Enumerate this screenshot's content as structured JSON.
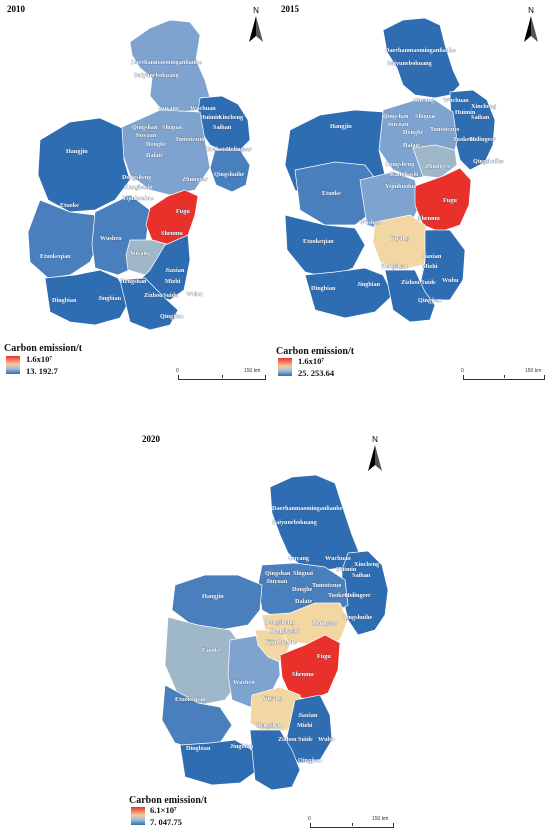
{
  "maps": [
    {
      "year": "2010",
      "legend_title": "Carbon emission/t",
      "legend_max": "1.6x10⁷",
      "legend_min": "13. 192.7",
      "scale_zero": "0",
      "scale_max": "150 km",
      "north": "N",
      "labels": [
        "Daerhanmaominganlianhe",
        "Baiyunebokuang",
        "Guyang",
        "Wuchuan",
        "Xincheng",
        "Huimin",
        "Saihan",
        "Qingshan",
        "Shiguai",
        "Jiuyuan",
        "Donghe",
        "Tumotezuo",
        "Tuoketuo",
        "Helingeer",
        "Dalate",
        "Hangjin",
        "Dongsheng",
        "Kangbashi",
        "Zhungeer",
        "Qingshuihe",
        "Yijinhuoluo",
        "Etuoke",
        "Fugu",
        "Shenmu",
        "Wushen",
        "Etuokeqian",
        "Yuyang",
        "Jiaxian",
        "Hengshan",
        "Mizhi",
        "Suide",
        "Zizhou",
        "Wubu",
        "Qingjian",
        "Dingbian",
        "Jingbian"
      ]
    },
    {
      "year": "2015",
      "legend_title": "Carbon emission/t",
      "legend_max": "1.6x10⁷",
      "legend_min": "25. 253.64",
      "scale_zero": "0",
      "scale_max": "150 km",
      "north": "N",
      "labels": [
        "Daerhanmaominganlianhe",
        "Baiyunebokuang",
        "Guyang",
        "Wuchuan",
        "Xincheng",
        "Huimin",
        "Saihan",
        "Qingshan",
        "Shiguai",
        "Jiuyuan",
        "Donghe",
        "Tumotezuo",
        "Tuoketuo",
        "Helingeer",
        "Dalate",
        "Hangjin",
        "Dongsheng",
        "Kangbashi",
        "Zhungeer",
        "Qingshuihe",
        "Yijinhuoluo",
        "Etuoke",
        "Fugu",
        "Shenmu",
        "Wushen",
        "Etuokeqian",
        "Yuyang",
        "Jiaxian",
        "Hengshan",
        "Mizhi",
        "Suide",
        "Zizhou",
        "Wubu",
        "Qingjian",
        "Dingbian",
        "Jingbian"
      ]
    },
    {
      "year": "2020",
      "legend_title": "Carbon emission/t",
      "legend_max": "6.1×10⁷",
      "legend_min": "7. 047.75",
      "scale_zero": "0",
      "scale_max": "150 km",
      "north": "N",
      "labels": [
        "Daerhanmaominganlianhe",
        "Baiyunebokuang",
        "Guyang",
        "Wuchuan",
        "Xincheng",
        "Huimin",
        "Saihan",
        "Qingshan",
        "Shiguai",
        "Jiuyuan",
        "Donghe",
        "Tumotezuo",
        "Tuoketuo",
        "Helingeer",
        "Dalate",
        "Hangjin",
        "Dongsheng",
        "Kangbashi",
        "Zhungeer",
        "Qingshuihe",
        "Yijinhuoluo",
        "Etuoke",
        "Fugu",
        "Shenmu",
        "Wushen",
        "Etuokeqian",
        "Yuyang",
        "Jiaxian",
        "Hengshan",
        "Mizhi",
        "Suide",
        "Zizhou",
        "Wubu",
        "Qingjian",
        "Dingbian",
        "Jingbian"
      ]
    }
  ],
  "colors": {
    "dark_blue": "#2f6db3",
    "mid_blue": "#4a7fbd",
    "light_blue": "#7ea3cf",
    "grey_blue": "#9fb8c9",
    "pale": "#f3d7a3",
    "red": "#e8312a",
    "border": "#ffffff"
  }
}
